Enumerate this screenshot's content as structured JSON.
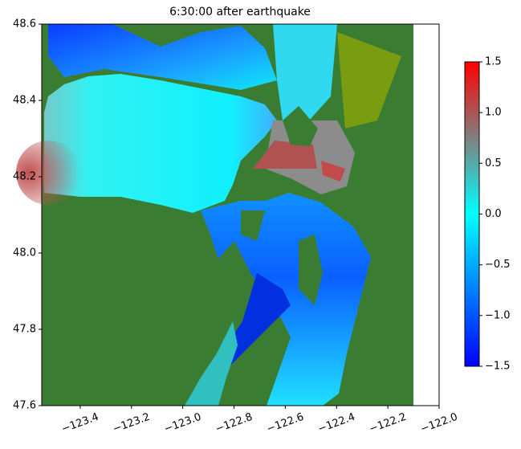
{
  "chart_data": {
    "type": "map",
    "title": "6:30:00 after earthquake",
    "xlim": [
      -123.55,
      -122.0
    ],
    "ylim": [
      47.6,
      48.6
    ],
    "xticks": [
      {
        "value": -123.4,
        "label": "−123.4"
      },
      {
        "value": -123.2,
        "label": "−123.2"
      },
      {
        "value": -123.0,
        "label": "−123.0"
      },
      {
        "value": -122.8,
        "label": "−122.8"
      },
      {
        "value": -122.6,
        "label": "−122.6"
      },
      {
        "value": -122.4,
        "label": "−122.4"
      },
      {
        "value": -122.2,
        "label": "−122.2"
      },
      {
        "value": -122.0,
        "label": "−122.0"
      }
    ],
    "yticks": [
      47.6,
      47.8,
      {
        "value": 48.0,
        "label": "48.0"
      },
      48.2,
      48.4,
      48.6
    ],
    "colorbar": {
      "clim": [
        -1.5,
        1.5
      ],
      "ticks": [
        1.5,
        {
          "value": 1.0,
          "label": "1.0"
        },
        0.5,
        {
          "value": 0.0,
          "label": "0.0"
        },
        {
          "value": -0.5,
          "label": "−0.5"
        },
        {
          "value": -1.0,
          "label": "−1.0"
        },
        {
          "value": -1.5,
          "label": "−1.5"
        }
      ],
      "colormap": [
        "#0000ff",
        "#00ffff",
        "#808080",
        "#ff0000"
      ]
    }
  }
}
